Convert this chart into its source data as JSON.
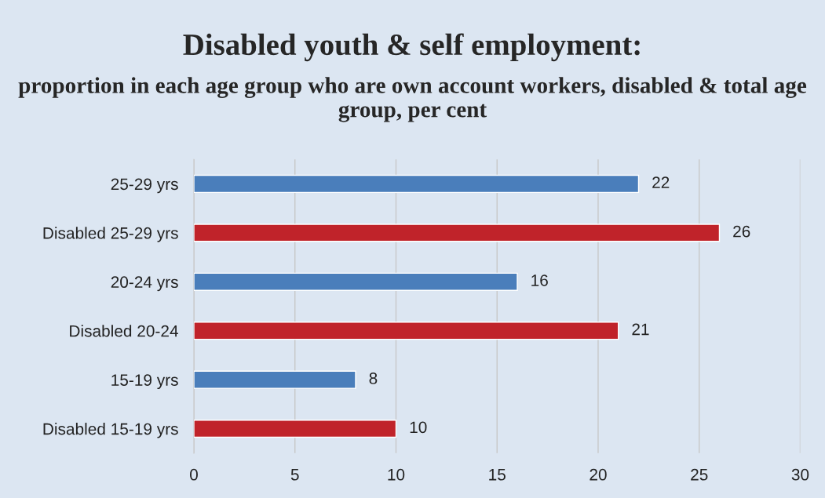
{
  "chart_data": {
    "type": "bar",
    "orientation": "horizontal",
    "title": "Disabled youth & self employment:",
    "subtitle": "proportion in each age group who are own account workers, disabled & total age group, per cent",
    "categories": [
      "25-29 yrs",
      "Disabled 25-29 yrs",
      "20-24 yrs",
      "Disabled 20-24",
      "15-19 yrs",
      "Disabled 15-19 yrs"
    ],
    "values": [
      22,
      26,
      16,
      21,
      8,
      10
    ],
    "colors": [
      "#4a7ebb",
      "#c0232a",
      "#4a7ebb",
      "#c0232a",
      "#4a7ebb",
      "#c0232a"
    ],
    "xlim": [
      0,
      30
    ],
    "xticks": [
      0,
      5,
      10,
      15,
      20,
      25,
      30
    ],
    "grid": "x",
    "legend": false,
    "data_labels": true
  }
}
